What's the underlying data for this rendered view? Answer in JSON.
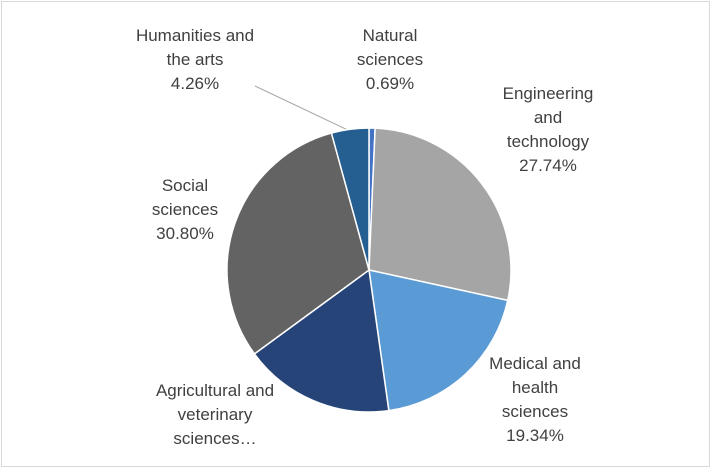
{
  "chart_data": {
    "type": "pie",
    "categories": [
      "Natural sciences",
      "Engineering and technology",
      "Medical and health sciences",
      "Agricultural and veterinary sciences…",
      "Social sciences",
      "Humanities and the arts"
    ],
    "values": [
      0.69,
      27.74,
      19.34,
      17.17,
      30.8,
      4.26
    ],
    "value_labels": [
      "0.69%",
      "27.74%",
      "19.34%",
      null,
      "30.80%",
      "4.26%"
    ],
    "colors": [
      "#4472c4",
      "#a5a5a5",
      "#5b9bd5",
      "#264478",
      "#636363",
      "#255e91"
    ]
  }
}
